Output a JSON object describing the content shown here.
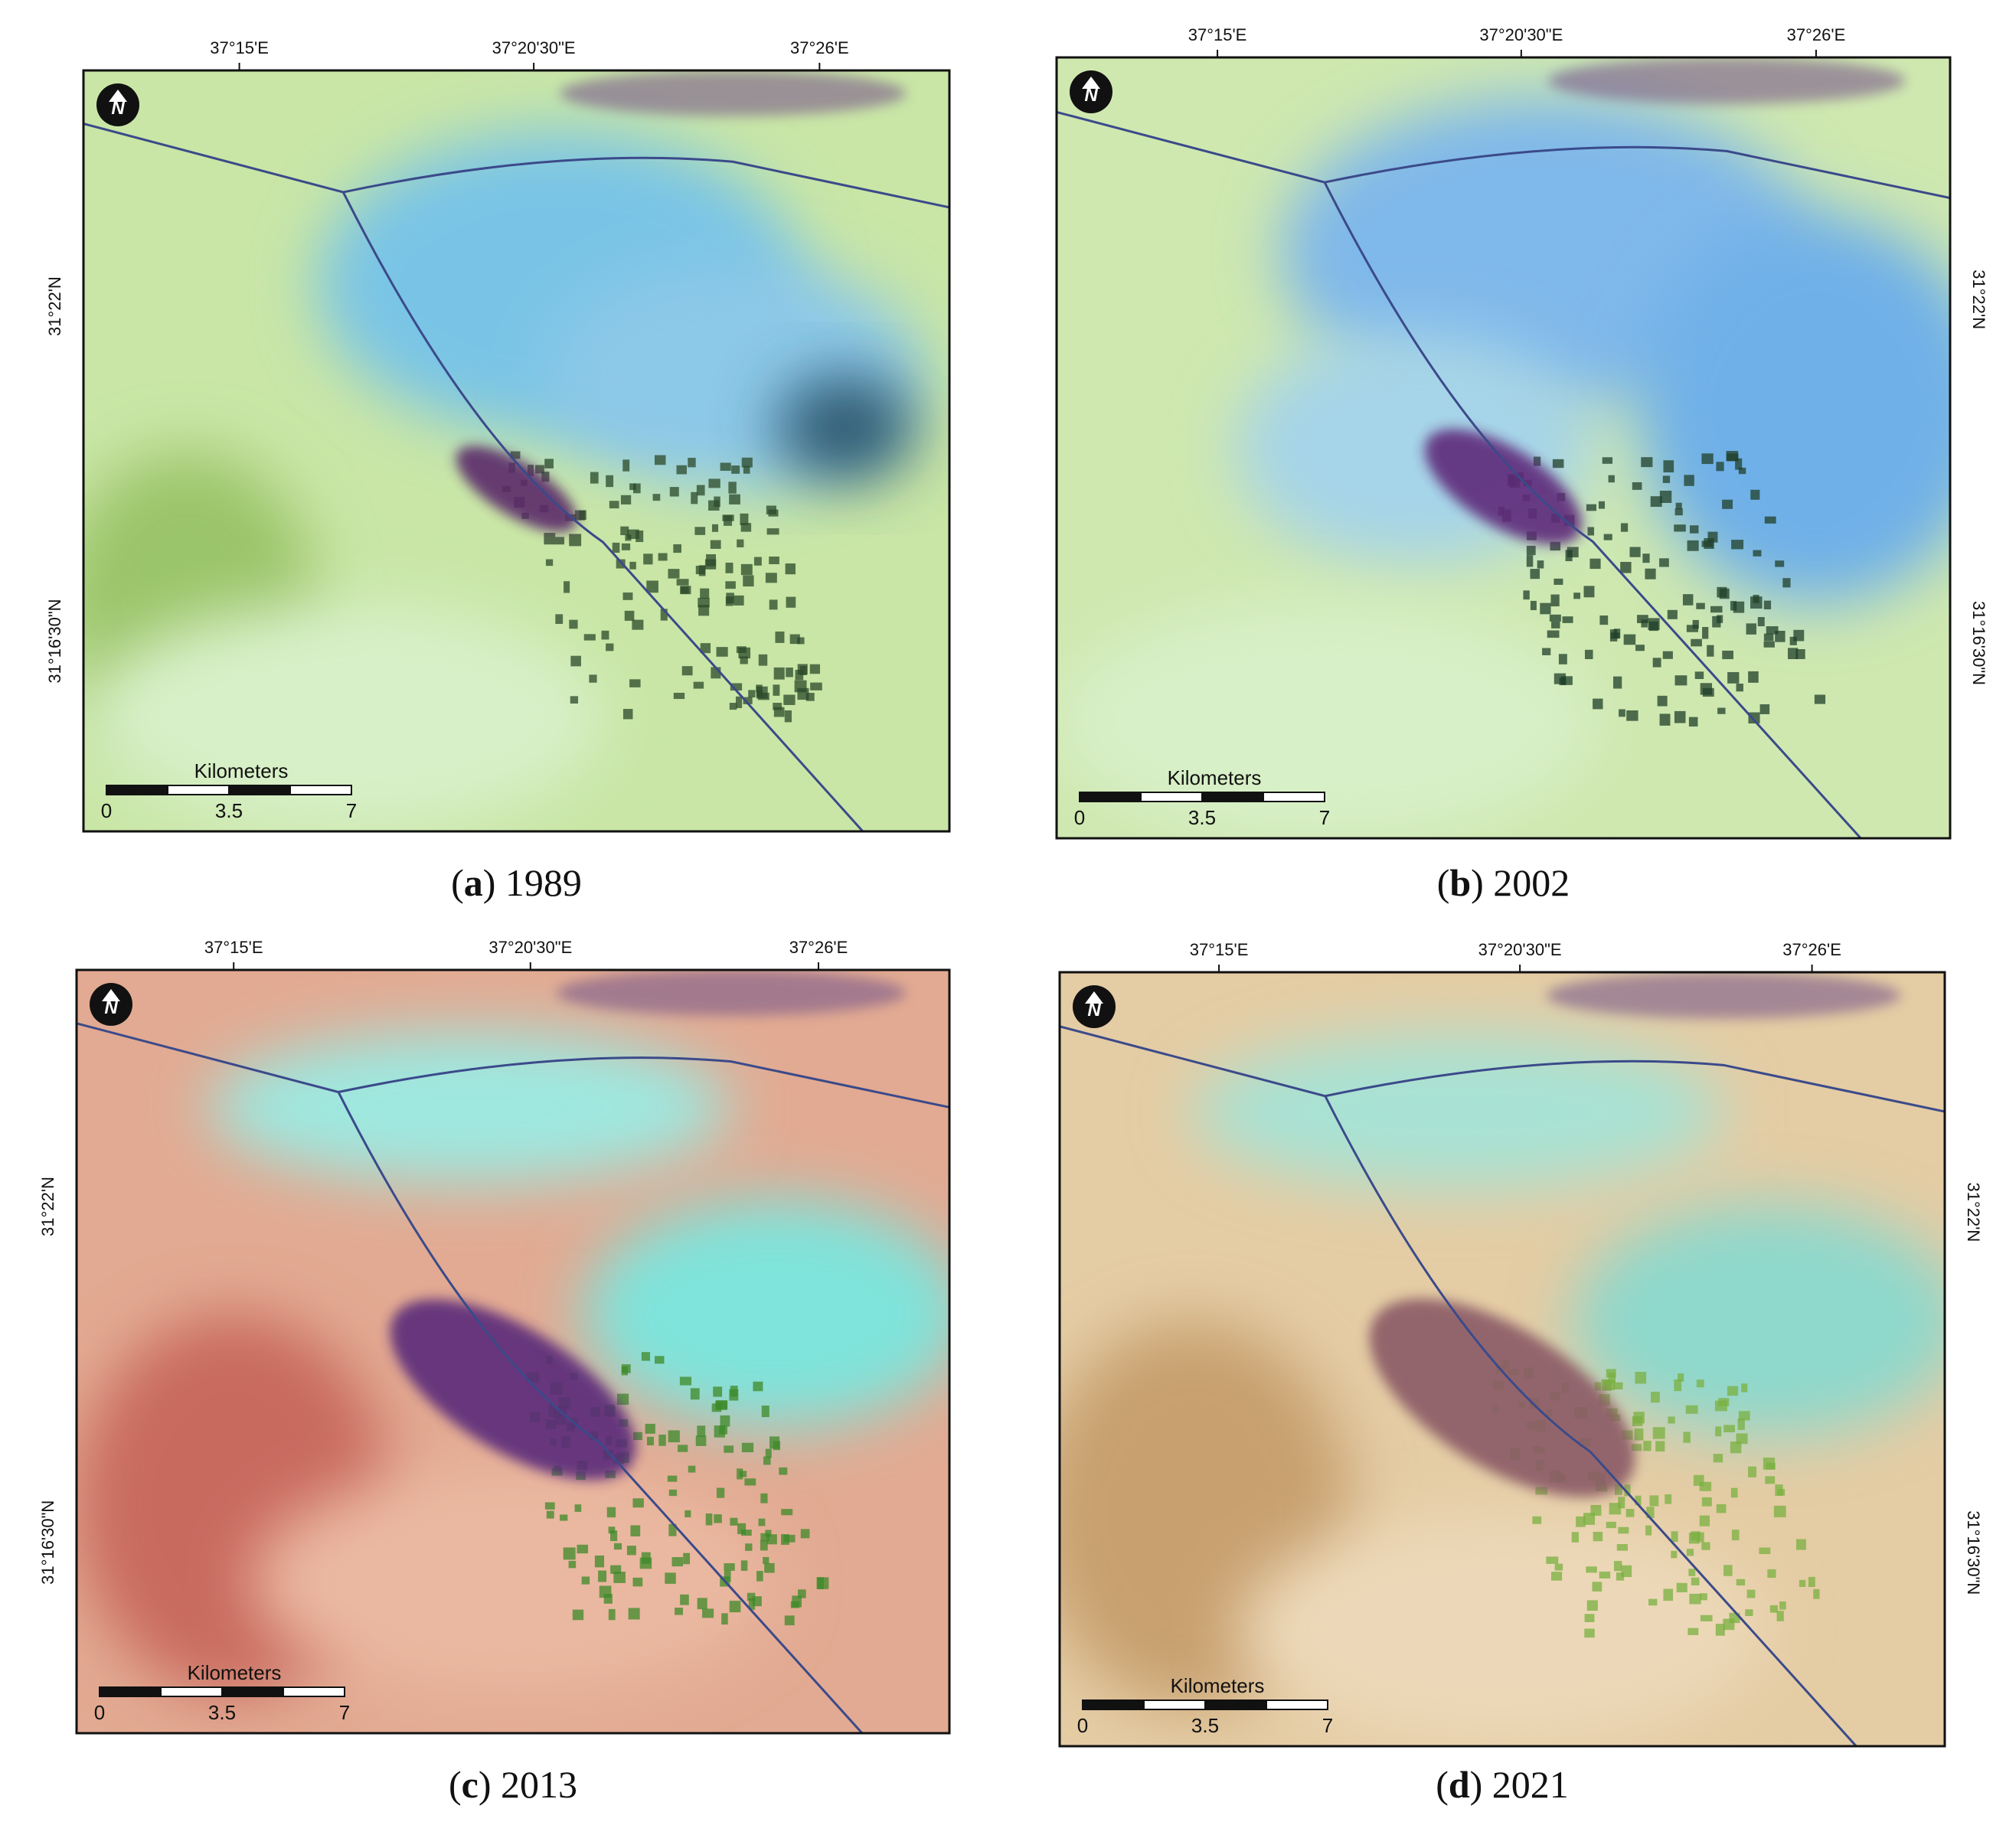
{
  "panels": [
    {
      "caption_parts": [
        "(",
        "a",
        ") 1989"
      ],
      "longitudes": [
        "37°15'E",
        "37°20'30\"E",
        "37°26'E"
      ],
      "latitudes": [
        "31°22'N",
        "31°16'30\"N"
      ],
      "north": "N",
      "scale_title": "Kilometers",
      "scale_labels": [
        "0",
        "3.5",
        "7"
      ]
    },
    {
      "caption_parts": [
        "(",
        "b",
        ") 2002"
      ],
      "longitudes": [
        "37°15'E",
        "37°20'30\"E",
        "37°26'E"
      ],
      "latitudes": [
        "31°22'N",
        "31°16'30\"N"
      ],
      "north": "N",
      "scale_title": "Kilometers",
      "scale_labels": [
        "0",
        "3.5",
        "7"
      ]
    },
    {
      "caption_parts": [
        "(",
        "c",
        ") 2013"
      ],
      "longitudes": [
        "37°15'E",
        "37°20'30\"E",
        "37°26'E"
      ],
      "latitudes": [
        "31°22'N",
        "31°16'30\"N"
      ],
      "north": "N",
      "scale_title": "Kilometers",
      "scale_labels": [
        "0",
        "3.5",
        "7"
      ]
    },
    {
      "caption_parts": [
        "(",
        "d",
        ") 2021"
      ],
      "longitudes": [
        "37°15'E",
        "37°20'30\"E",
        "37°26'E"
      ],
      "latitudes": [
        "31°22'N",
        "31°16'30\"N"
      ],
      "north": "N",
      "scale_title": "Kilometers",
      "scale_labels": [
        "0",
        "3.5",
        "7"
      ]
    }
  ]
}
